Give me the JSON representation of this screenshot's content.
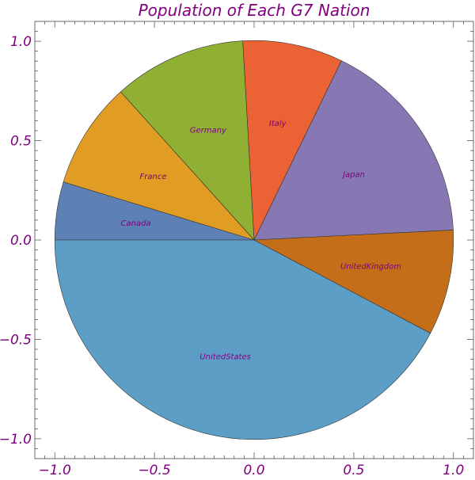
{
  "chart_data": {
    "type": "pie",
    "title": "Population of Each G7 Nation",
    "categories": [
      "Canada",
      "France",
      "Germany",
      "Italy",
      "Japan",
      "UnitedKingdom",
      "UnitedStates"
    ],
    "values": [
      35.2,
      64.6,
      80.6,
      60.8,
      127.2,
      63.9,
      316.4
    ],
    "start_angle_deg": 180,
    "direction": "clockwise",
    "xlim": [
      -1.1,
      1.1
    ],
    "ylim": [
      -1.1,
      1.1
    ],
    "x_ticks": [
      -1.0,
      -0.5,
      0.0,
      0.5,
      1.0
    ],
    "y_ticks": [
      -1.0,
      -0.5,
      0.0,
      0.5,
      1.0
    ],
    "x_tick_labels": [
      "−1.0",
      "−0.5",
      "0.0",
      "0.5",
      "1.0"
    ],
    "y_tick_labels": [
      "−1.0",
      "−0.5",
      "0.0",
      "0.5",
      "1.0"
    ],
    "grid": false,
    "colors": {
      "Canada": "#5e81b5",
      "France": "#e19c24",
      "Germany": "#8fb032",
      "Italy": "#eb6235",
      "Japan": "#8778b3",
      "UnitedKingdom": "#c56e1a",
      "UnitedStates": "#5d9ec7",
      "text": "#800080",
      "frame": "#444444"
    }
  }
}
